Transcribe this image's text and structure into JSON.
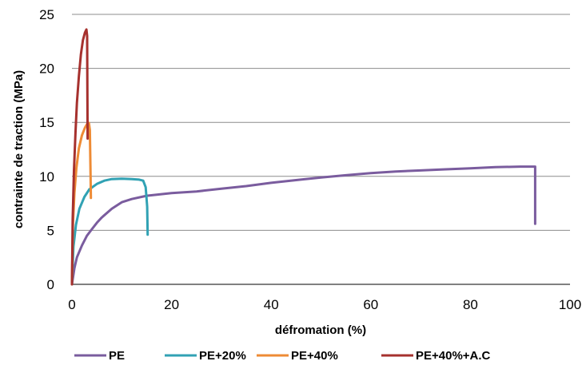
{
  "chart_data": {
    "type": "line",
    "title": "",
    "xlabel": "défromation (%)",
    "ylabel": "contrainte de traction (MPa)",
    "xlim": [
      0,
      100
    ],
    "ylim": [
      0,
      25
    ],
    "xticks": [
      0,
      20,
      40,
      60,
      80,
      100
    ],
    "yticks": [
      0,
      5,
      10,
      15,
      20,
      25
    ],
    "xtick_labels": [
      "0",
      "20",
      "40",
      "60",
      "80",
      "100"
    ],
    "ytick_labels": [
      "0",
      "5",
      "10",
      "15",
      "20",
      "25"
    ],
    "grid": "horizontal",
    "legend_position": "bottom",
    "series": [
      {
        "name": "PE",
        "color": "#7A5C9E",
        "x": [
          0,
          0.5,
          1,
          2,
          3,
          4,
          5,
          6,
          8,
          10,
          12,
          15,
          20,
          25,
          30,
          35,
          40,
          45,
          50,
          55,
          60,
          65,
          70,
          75,
          80,
          85,
          90,
          93,
          93
        ],
        "y": [
          0,
          1.5,
          2.5,
          3.6,
          4.5,
          5.1,
          5.7,
          6.2,
          7.0,
          7.6,
          7.9,
          8.2,
          8.45,
          8.6,
          8.85,
          9.1,
          9.4,
          9.65,
          9.9,
          10.1,
          10.3,
          10.45,
          10.55,
          10.65,
          10.75,
          10.85,
          10.9,
          10.9,
          5.6
        ]
      },
      {
        "name": "PE+20%",
        "color": "#31A2B4",
        "x": [
          0,
          0.3,
          0.8,
          1.5,
          2.5,
          3.5,
          5,
          6.5,
          8,
          10,
          12,
          13.5,
          14.3,
          14.8,
          15.1,
          15.2
        ],
        "y": [
          0,
          3.5,
          5.5,
          7.0,
          8.1,
          8.8,
          9.3,
          9.6,
          9.75,
          9.78,
          9.75,
          9.7,
          9.6,
          9.0,
          7.2,
          4.6
        ]
      },
      {
        "name": "PE+40%",
        "color": "#EE8B35",
        "x": [
          0,
          0.2,
          0.5,
          0.9,
          1.4,
          2.0,
          2.6,
          3.1,
          3.4,
          3.6,
          3.7,
          3.8
        ],
        "y": [
          0,
          5.5,
          8.5,
          10.8,
          12.6,
          13.8,
          14.5,
          14.9,
          14.95,
          14.3,
          11.0,
          8.0
        ]
      },
      {
        "name": "PE+40%+A.C",
        "color": "#A6312E",
        "x": [
          0,
          0.15,
          0.4,
          0.7,
          1.0,
          1.4,
          1.8,
          2.2,
          2.6,
          2.9,
          3.05,
          3.1,
          3.15
        ],
        "y": [
          0,
          6.0,
          10.5,
          14.0,
          16.8,
          19.3,
          21.3,
          22.6,
          23.3,
          23.6,
          23.0,
          18.0,
          13.5
        ]
      }
    ]
  }
}
